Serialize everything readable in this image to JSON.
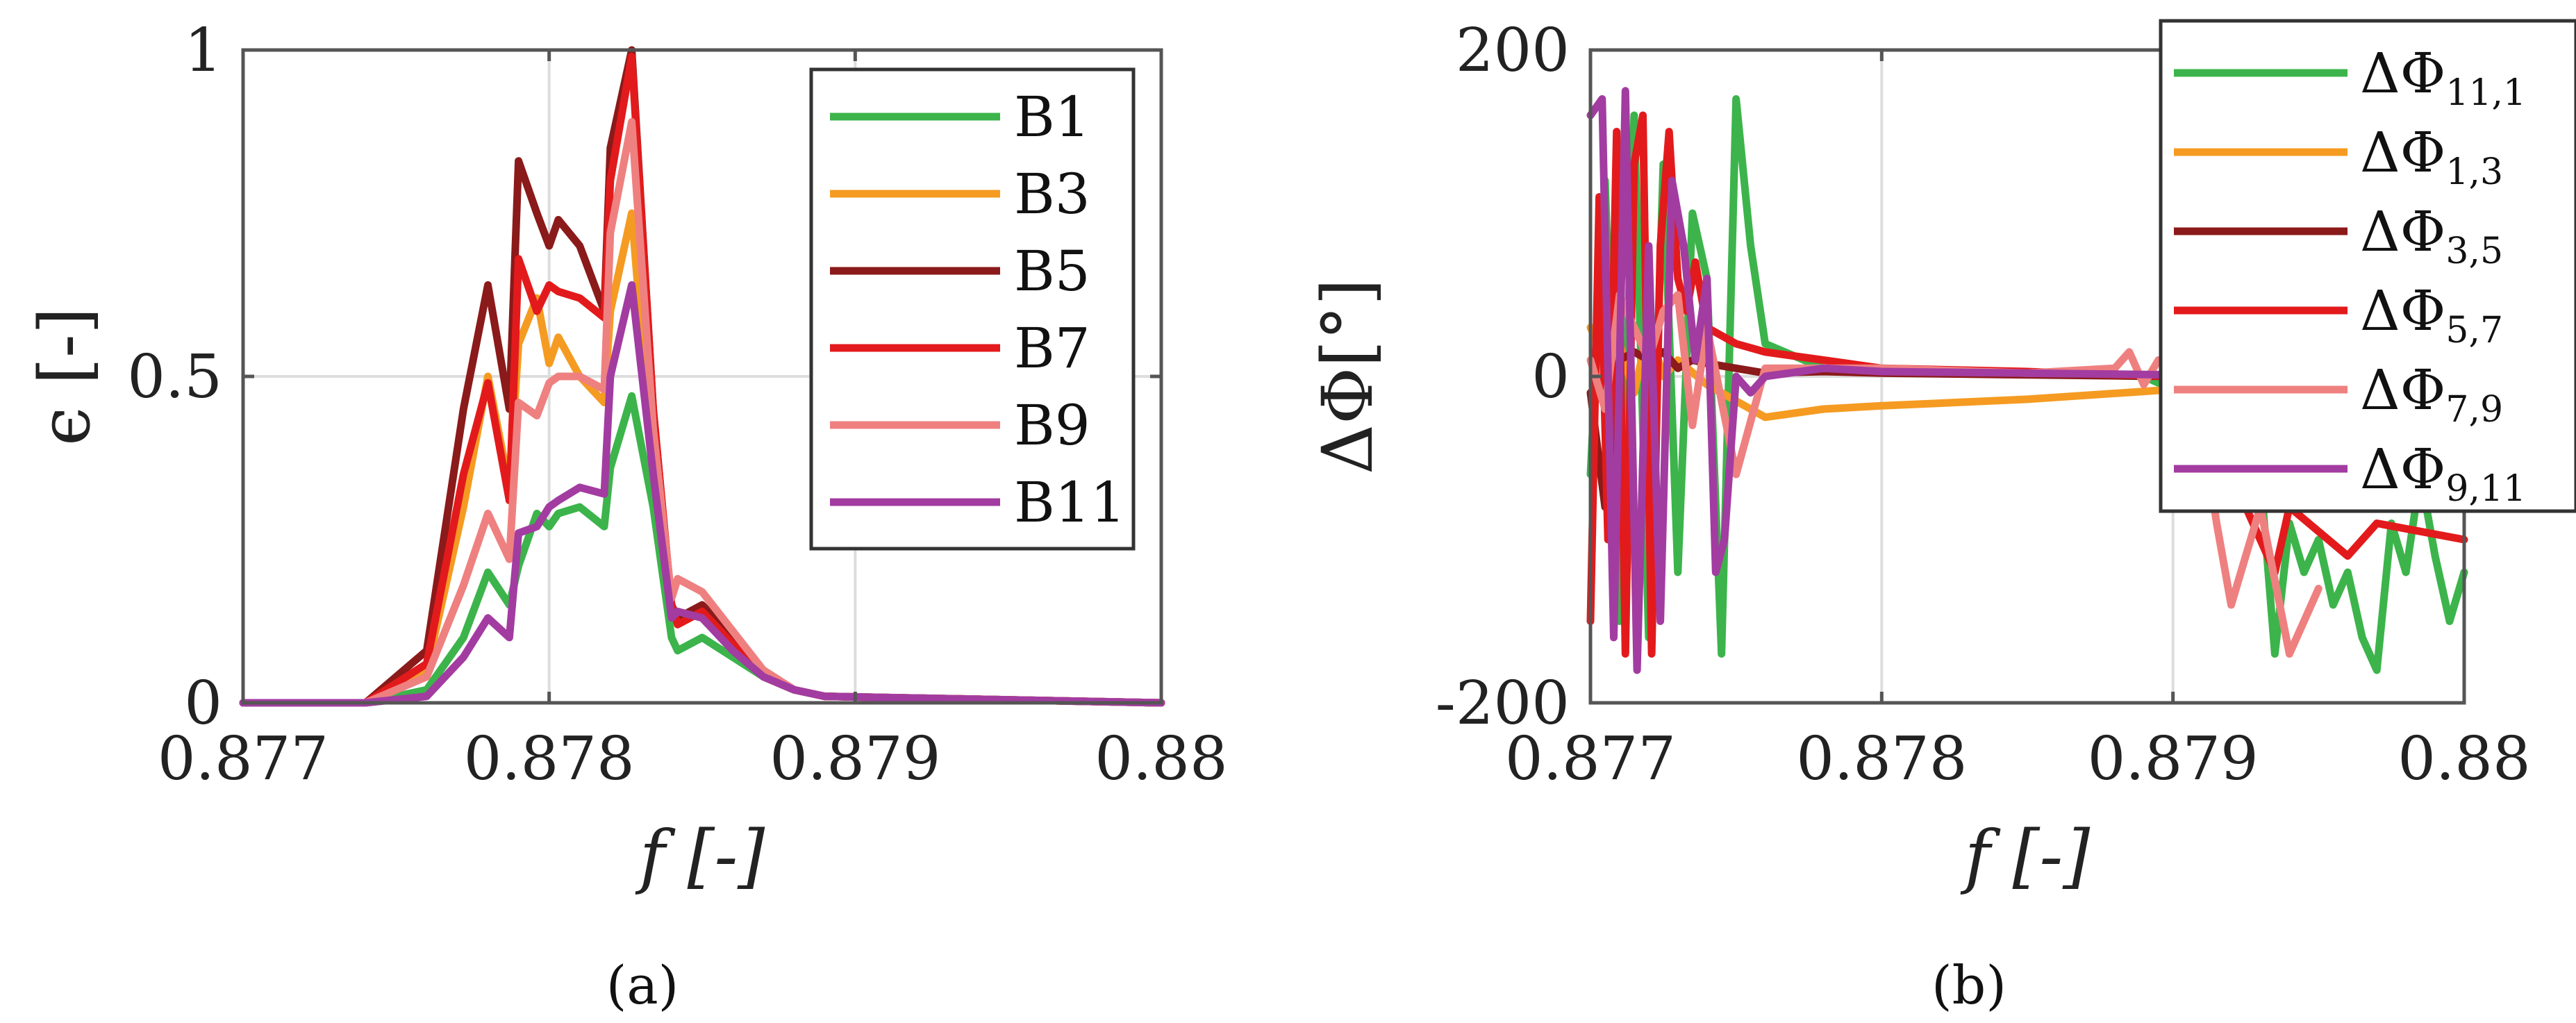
{
  "chart_data": [
    {
      "type": "line",
      "xlabel": "f  [-]",
      "ylabel": "ϵ [-]",
      "xlim": [
        0.877,
        0.88
      ],
      "ylim": [
        0,
        1
      ],
      "x_ticks": [
        "0.877",
        "0.878",
        "0.879",
        "0.88"
      ],
      "y_ticks": [
        "0",
        "0.5",
        "1"
      ],
      "grid": true,
      "legend_position": "top-right",
      "caption": "(a)",
      "series": [
        {
          "name": "B1",
          "color": "#3cb44b",
          "x": [
            0.877,
            0.8774,
            0.8776,
            0.87772,
            0.8778,
            0.87787,
            0.8779,
            0.87796,
            0.878,
            0.87803,
            0.8781,
            0.87818,
            0.8782,
            0.87827,
            0.87834,
            0.8784,
            0.87842,
            0.8785,
            0.8786,
            0.8787,
            0.8788,
            0.8789,
            0.88
          ],
          "y": [
            0,
            0,
            0.02,
            0.1,
            0.2,
            0.15,
            0.21,
            0.29,
            0.27,
            0.29,
            0.3,
            0.27,
            0.36,
            0.47,
            0.3,
            0.1,
            0.08,
            0.1,
            0.07,
            0.04,
            0.02,
            0.01,
            0
          ]
        },
        {
          "name": "B3",
          "color": "#f59b22",
          "x": [
            0.877,
            0.8774,
            0.8776,
            0.87772,
            0.8778,
            0.87787,
            0.8779,
            0.87796,
            0.878,
            0.87803,
            0.8781,
            0.87818,
            0.8782,
            0.87827,
            0.87834,
            0.8784,
            0.87842,
            0.8785,
            0.8786,
            0.8787,
            0.8788,
            0.8789,
            0.88
          ],
          "y": [
            0,
            0,
            0.05,
            0.3,
            0.5,
            0.33,
            0.55,
            0.62,
            0.52,
            0.56,
            0.5,
            0.46,
            0.6,
            0.75,
            0.35,
            0.15,
            0.12,
            0.14,
            0.09,
            0.04,
            0.02,
            0.01,
            0
          ]
        },
        {
          "name": "B5",
          "color": "#8b1a1a",
          "x": [
            0.877,
            0.8774,
            0.8776,
            0.87772,
            0.8778,
            0.87787,
            0.8779,
            0.87796,
            0.878,
            0.87803,
            0.8781,
            0.87818,
            0.8782,
            0.87827,
            0.87834,
            0.8784,
            0.87842,
            0.8785,
            0.8786,
            0.8787,
            0.8788,
            0.8789,
            0.88
          ],
          "y": [
            0,
            0,
            0.08,
            0.45,
            0.64,
            0.45,
            0.83,
            0.75,
            0.7,
            0.74,
            0.7,
            0.6,
            0.85,
            1.0,
            0.45,
            0.15,
            0.13,
            0.15,
            0.1,
            0.05,
            0.02,
            0.01,
            0
          ]
        },
        {
          "name": "B7",
          "color": "#e31a1c",
          "x": [
            0.877,
            0.8774,
            0.8776,
            0.87772,
            0.8778,
            0.87787,
            0.8779,
            0.87796,
            0.878,
            0.87803,
            0.8781,
            0.87818,
            0.8782,
            0.87827,
            0.87834,
            0.8784,
            0.87842,
            0.8785,
            0.8786,
            0.8787,
            0.8788,
            0.8789,
            0.88
          ],
          "y": [
            0,
            0,
            0.06,
            0.35,
            0.49,
            0.31,
            0.68,
            0.6,
            0.64,
            0.63,
            0.62,
            0.59,
            0.8,
            0.99,
            0.45,
            0.15,
            0.12,
            0.14,
            0.09,
            0.04,
            0.02,
            0.01,
            0
          ]
        },
        {
          "name": "B9",
          "color": "#ef8080",
          "x": [
            0.877,
            0.8774,
            0.8776,
            0.87772,
            0.8778,
            0.87787,
            0.8779,
            0.87796,
            0.878,
            0.87803,
            0.8781,
            0.87818,
            0.8782,
            0.87827,
            0.87834,
            0.8784,
            0.87842,
            0.8785,
            0.8786,
            0.8787,
            0.8788,
            0.8789,
            0.88
          ],
          "y": [
            0,
            0,
            0.04,
            0.18,
            0.29,
            0.22,
            0.46,
            0.44,
            0.49,
            0.5,
            0.5,
            0.48,
            0.72,
            0.89,
            0.42,
            0.16,
            0.19,
            0.17,
            0.11,
            0.05,
            0.02,
            0.01,
            0
          ]
        },
        {
          "name": "B11",
          "color": "#a23ca1",
          "x": [
            0.877,
            0.8774,
            0.8776,
            0.87772,
            0.8778,
            0.87787,
            0.8779,
            0.87796,
            0.878,
            0.87803,
            0.8781,
            0.87818,
            0.8782,
            0.87827,
            0.87834,
            0.8784,
            0.87842,
            0.8785,
            0.8786,
            0.8787,
            0.8788,
            0.8789,
            0.88
          ],
          "y": [
            0,
            0,
            0.01,
            0.07,
            0.13,
            0.1,
            0.26,
            0.27,
            0.3,
            0.31,
            0.33,
            0.32,
            0.5,
            0.64,
            0.35,
            0.13,
            0.14,
            0.13,
            0.08,
            0.04,
            0.02,
            0.01,
            0
          ]
        }
      ]
    },
    {
      "type": "line",
      "xlabel": "f  [-]",
      "ylabel": "ΔΦ[°]",
      "xlim": [
        0.877,
        0.88
      ],
      "ylim": [
        -200,
        200
      ],
      "x_ticks": [
        "0.877",
        "0.878",
        "0.879",
        "0.88"
      ],
      "y_ticks": [
        "-200",
        "0",
        "200"
      ],
      "grid": true,
      "legend_position": "top-right",
      "caption": "(b)",
      "series": [
        {
          "name": "ΔΦ",
          "subscript": "11,1",
          "color": "#3cb44b",
          "x": [
            0.877,
            0.87705,
            0.8771,
            0.87715,
            0.8772,
            0.87725,
            0.8773,
            0.87735,
            0.8774,
            0.87745,
            0.8775,
            0.87755,
            0.8776,
            0.8778,
            0.878,
            0.8785,
            0.8789,
            0.87915,
            0.8793,
            0.87935,
            0.8794,
            0.87945,
            0.8795,
            0.87955,
            0.8796,
            0.87965,
            0.8797,
            0.87975,
            0.8798,
            0.87985,
            0.8799,
            0.87995,
            0.88
          ],
          "y": [
            -60,
            120,
            -150,
            160,
            -160,
            130,
            -120,
            100,
            60,
            -170,
            170,
            80,
            20,
            5,
            3,
            2,
            0,
            -20,
            -60,
            -170,
            -90,
            -120,
            -100,
            -140,
            -120,
            -160,
            -180,
            -90,
            -120,
            -60,
            -110,
            -150,
            -120
          ]
        },
        {
          "name": "ΔΦ",
          "subscript": "1,3",
          "color": "#f59b22",
          "x": [
            0.877,
            0.87705,
            0.8771,
            0.87715,
            0.8772,
            0.87725,
            0.8773,
            0.8774,
            0.8775,
            0.8776,
            0.8778,
            0.878,
            0.8785,
            0.879,
            0.8792,
            0.88
          ],
          "y": [
            30,
            10,
            20,
            -10,
            30,
            0,
            10,
            -5,
            -15,
            -25,
            -20,
            -18,
            -14,
            -8,
            -5,
            -4
          ]
        },
        {
          "name": "ΔΦ",
          "subscript": "3,5",
          "color": "#8b1a1a",
          "x": [
            0.877,
            0.87705,
            0.8771,
            0.87715,
            0.8772,
            0.87725,
            0.8773,
            0.87735,
            0.8774,
            0.8775,
            0.8776,
            0.8778,
            0.878,
            0.8785,
            0.879,
            0.8792,
            0.88
          ],
          "y": [
            -10,
            -80,
            10,
            15,
            10,
            15,
            5,
            10,
            8,
            5,
            2,
            3,
            2,
            1,
            0,
            -5,
            -10
          ]
        },
        {
          "name": "ΔΦ",
          "subscript": "5,7",
          "color": "#e31a1c",
          "x": [
            0.877,
            0.87703,
            0.87706,
            0.87709,
            0.87712,
            0.87715,
            0.87718,
            0.87721,
            0.87724,
            0.87727,
            0.8773,
            0.87733,
            0.87736,
            0.8774,
            0.8775,
            0.8776,
            0.8778,
            0.878,
            0.8785,
            0.879,
            0.8792,
            0.87935,
            0.8794,
            0.8796,
            0.8797,
            0.88
          ],
          "y": [
            -150,
            110,
            -100,
            150,
            -170,
            130,
            160,
            -170,
            80,
            150,
            60,
            40,
            70,
            30,
            20,
            15,
            10,
            5,
            3,
            0,
            -60,
            -120,
            -80,
            -110,
            -90,
            -100
          ]
        },
        {
          "name": "ΔΦ",
          "subscript": "7,9",
          "color": "#ef8080",
          "x": [
            0.877,
            0.87705,
            0.8771,
            0.87715,
            0.8772,
            0.87725,
            0.8773,
            0.87735,
            0.8774,
            0.8775,
            0.8776,
            0.878,
            0.8785,
            0.8788,
            0.87885,
            0.8789,
            0.87895,
            0.879,
            0.8791,
            0.87915,
            0.8792,
            0.8793,
            0.8794,
            0.8795
          ],
          "y": [
            10,
            -20,
            50,
            30,
            10,
            40,
            50,
            -30,
            30,
            -60,
            5,
            5,
            2,
            5,
            15,
            -5,
            10,
            0,
            -30,
            -90,
            -140,
            -80,
            -170,
            -130
          ]
        },
        {
          "name": "ΔΦ",
          "subscript": "9,11",
          "color": "#a23ca1",
          "x": [
            0.877,
            0.87704,
            0.87708,
            0.87712,
            0.87716,
            0.8772,
            0.87724,
            0.87728,
            0.87732,
            0.87736,
            0.8774,
            0.87743,
            0.87746,
            0.8775,
            0.87755,
            0.8776,
            0.8778,
            0.878,
            0.8785,
            0.879,
            0.8792,
            0.88
          ],
          "y": [
            160,
            170,
            -160,
            175,
            -180,
            80,
            -150,
            120,
            80,
            10,
            60,
            -120,
            -100,
            0,
            -10,
            0,
            5,
            3,
            2,
            1,
            -5,
            -8
          ]
        }
      ]
    }
  ]
}
